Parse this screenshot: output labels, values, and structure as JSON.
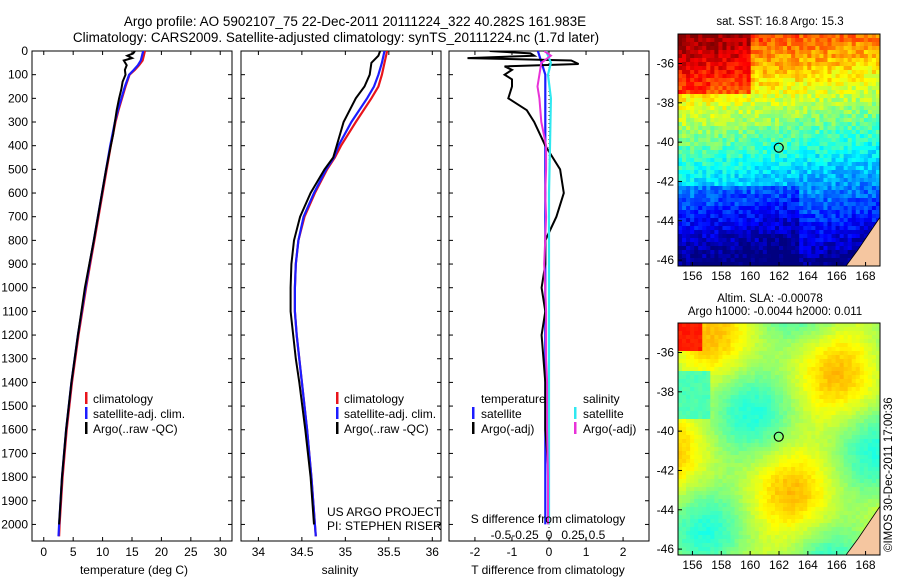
{
  "header": {
    "line1": "Argo profile: AO 5902107_75 22-Dec-2011 20111224_322 40.282S 161.983E",
    "line2": "Climatology: CARS2009. Satellite-adjusted climatology: synTS_20111224.nc (1.7d later)"
  },
  "colors": {
    "climatology": "#e8141b",
    "satellite": "#1c1cff",
    "argo": "#000000",
    "sat_sal": "#2fe8f0",
    "argo_sal": "#e832d8"
  },
  "chart_data": [
    {
      "type": "line",
      "id": "temperature",
      "xlabel": "temperature (deg C)",
      "ylabel": "",
      "xlim": [
        -2,
        32
      ],
      "ylim": [
        2070,
        0
      ],
      "xticks": [
        "0",
        "5",
        "10",
        "15",
        "20",
        "25",
        "30"
      ],
      "xtick_values": [
        0,
        5,
        10,
        15,
        20,
        25,
        30
      ],
      "yticks": [
        "0",
        "100",
        "200",
        "300",
        "400",
        "500",
        "600",
        "700",
        "800",
        "900",
        "1000",
        "1100",
        "1200",
        "1300",
        "1400",
        "1500",
        "1600",
        "1700",
        "1800",
        "1900",
        "2000"
      ],
      "ytick_values": [
        0,
        100,
        200,
        300,
        400,
        500,
        600,
        700,
        800,
        900,
        1000,
        1100,
        1200,
        1300,
        1400,
        1500,
        1600,
        1700,
        1800,
        1900,
        2000
      ],
      "legend": [
        "climatology",
        "satellite-adj. clim.",
        "Argo(..raw -QC)"
      ],
      "series": [
        {
          "name": "climatology",
          "depth": [
            0,
            20,
            40,
            60,
            80,
            100,
            150,
            200,
            250,
            300,
            400,
            500,
            600,
            700,
            800,
            900,
            1000,
            1200,
            1400,
            1600,
            1800,
            2000,
            2050
          ],
          "values": [
            17.2,
            17.0,
            16.8,
            16.2,
            15.5,
            14.6,
            13.9,
            13.3,
            12.7,
            12.2,
            11.4,
            10.7,
            10.0,
            9.3,
            8.6,
            7.9,
            7.2,
            5.9,
            4.8,
            3.9,
            3.2,
            2.7,
            2.6
          ]
        },
        {
          "name": "satellite",
          "depth": [
            0,
            20,
            40,
            60,
            80,
            100,
            150,
            200,
            250,
            300,
            400,
            500,
            600,
            700,
            800,
            900,
            1000,
            1200,
            1400,
            1600,
            1800,
            2000,
            2050
          ],
          "values": [
            16.9,
            16.7,
            16.5,
            16.0,
            15.3,
            14.5,
            13.8,
            13.2,
            12.6,
            12.1,
            11.3,
            10.6,
            9.9,
            9.2,
            8.5,
            7.8,
            7.1,
            5.8,
            4.7,
            3.8,
            3.1,
            2.6,
            2.5
          ]
        },
        {
          "name": "argo",
          "depth": [
            0,
            10,
            20,
            30,
            40,
            60,
            80,
            100,
            130,
            160,
            200,
            250,
            300,
            350,
            400,
            500,
            600,
            800,
            1000,
            1200,
            1400,
            1600,
            1800,
            2000
          ],
          "values": [
            15.5,
            15.2,
            14.2,
            15.0,
            13.6,
            14.1,
            13.8,
            13.9,
            13.4,
            13.2,
            12.8,
            12.4,
            12.1,
            11.8,
            11.4,
            10.6,
            9.9,
            8.5,
            7.0,
            5.8,
            4.7,
            3.8,
            3.1,
            2.6
          ]
        }
      ]
    },
    {
      "type": "line",
      "id": "salinity",
      "xlabel": "salinity",
      "xlim": [
        33.8,
        36.1
      ],
      "xticks": [
        "34",
        "34.5",
        "35",
        "35.5",
        "36"
      ],
      "xtick_values": [
        34,
        34.5,
        35,
        35.5,
        36
      ],
      "legend": [
        "climatology",
        "satellite-adj. clim.",
        "Argo(..raw -QC)"
      ],
      "annotation_lines": [
        "US ARGO PROJECT",
        "PI: STEPHEN RISER"
      ],
      "series": [
        {
          "name": "climatology",
          "depth": [
            0,
            50,
            100,
            150,
            200,
            300,
            400,
            450,
            500,
            600,
            700,
            800,
            900,
            1000,
            1100,
            1200,
            1400,
            1600,
            1800,
            2000,
            2050
          ],
          "values": [
            35.48,
            35.45,
            35.42,
            35.38,
            35.3,
            35.12,
            34.95,
            34.88,
            34.79,
            34.65,
            34.53,
            34.46,
            34.43,
            34.42,
            34.42,
            34.44,
            34.5,
            34.56,
            34.61,
            34.65,
            34.66
          ]
        },
        {
          "name": "satellite",
          "depth": [
            0,
            50,
            100,
            150,
            200,
            300,
            400,
            450,
            500,
            600,
            700,
            800,
            900,
            1000,
            1100,
            1200,
            1400,
            1600,
            1800,
            2000,
            2050
          ],
          "values": [
            35.45,
            35.42,
            35.38,
            35.33,
            35.25,
            35.07,
            34.92,
            34.87,
            34.78,
            34.64,
            34.52,
            34.46,
            34.43,
            34.42,
            34.42,
            34.44,
            34.5,
            34.56,
            34.61,
            34.65,
            34.66
          ]
        },
        {
          "name": "argo",
          "depth": [
            0,
            20,
            50,
            100,
            150,
            200,
            300,
            400,
            450,
            500,
            600,
            700,
            800,
            900,
            1000,
            1100,
            1200,
            1300,
            1400,
            1600,
            1800,
            2000
          ],
          "values": [
            35.4,
            35.38,
            35.3,
            35.28,
            35.22,
            35.12,
            34.98,
            34.9,
            34.86,
            34.76,
            34.6,
            34.48,
            34.41,
            34.38,
            34.37,
            34.37,
            34.4,
            34.43,
            34.47,
            34.54,
            34.6,
            34.64
          ]
        }
      ]
    },
    {
      "type": "line",
      "id": "difference",
      "xlabel": "T difference from climatology",
      "xlim": [
        -2.7,
        2.7
      ],
      "xticks": [
        "-2",
        "-1",
        "0",
        "1",
        "2"
      ],
      "xtick_values": [
        -2,
        -1,
        0,
        1,
        2
      ],
      "top_axis_label": "S difference from climatology",
      "top_ticks": [
        "-0.5",
        "-0.25",
        "0",
        "0.25",
        "0.5"
      ],
      "top_tick_values": [
        -0.5,
        -0.25,
        0,
        0.25,
        0.5
      ],
      "legend_left_title": "temperature",
      "legend_right_title": "salinity",
      "legend": [
        "satellite",
        "Argo(-adj)",
        "satellite",
        "Argo(-adj)"
      ],
      "series": [
        {
          "name": "satellite-T",
          "depth": [
            0,
            50,
            100,
            200,
            400,
            600,
            800,
            1000,
            1200,
            1400,
            1600,
            1800,
            2000
          ],
          "values": [
            -0.3,
            -0.2,
            -0.1,
            -0.1,
            -0.1,
            -0.1,
            -0.1,
            -0.1,
            -0.1,
            -0.1,
            -0.1,
            -0.1,
            -0.1
          ]
        },
        {
          "name": "argo-T",
          "depth": [
            0,
            10,
            20,
            30,
            40,
            55,
            65,
            80,
            100,
            120,
            150,
            200,
            250,
            300,
            400,
            500,
            600,
            700,
            800,
            900,
            1000,
            1100,
            1200,
            1400,
            1600,
            1800,
            2000
          ],
          "values": [
            -1.6,
            -0.5,
            -0.4,
            -2.2,
            0.6,
            0.8,
            -1.2,
            -1.0,
            -1.2,
            -1.0,
            -1.0,
            -1.1,
            -0.6,
            -0.4,
            -0.1,
            0.3,
            0.4,
            0.2,
            -0.1,
            -0.1,
            -0.2,
            -0.1,
            -0.2,
            -0.1,
            -0.1,
            0.0,
            0.0
          ]
        },
        {
          "name": "satellite-S",
          "depth": [
            0,
            50,
            100,
            200,
            400,
            600,
            800,
            1000,
            1200,
            1400,
            1600,
            1800,
            2000
          ],
          "values": [
            -0.03,
            0.02,
            -0.01,
            0.02,
            0.01,
            0.0,
            0.0,
            0.0,
            0.0,
            0.0,
            0.0,
            0.0,
            0.0
          ]
        },
        {
          "name": "argo-S",
          "depth": [
            0,
            20,
            50,
            100,
            150,
            200,
            300,
            400,
            500,
            600,
            700,
            800,
            900,
            1000,
            1100,
            1200,
            1300,
            1400,
            1600,
            1800,
            2000
          ],
          "values": [
            -0.05,
            0.02,
            -0.08,
            -0.1,
            -0.12,
            -0.1,
            -0.08,
            -0.03,
            -0.03,
            -0.04,
            -0.03,
            -0.04,
            -0.05,
            -0.04,
            -0.03,
            -0.03,
            -0.03,
            -0.02,
            -0.02,
            -0.01,
            -0.01
          ]
        }
      ]
    },
    {
      "type": "heatmap",
      "id": "sst_map",
      "title": "sat. SST: 16.8 Argo: 15.3",
      "xticks": [
        "156",
        "158",
        "160",
        "162",
        "164",
        "166",
        "168"
      ],
      "xtick_values": [
        156,
        158,
        160,
        162,
        164,
        166,
        168
      ],
      "yticks": [
        "-36",
        "-38",
        "-40",
        "-42",
        "-44",
        "-46"
      ],
      "ytick_values": [
        -36,
        -38,
        -40,
        -42,
        -44,
        -46
      ],
      "xlim": [
        155,
        169
      ],
      "ylim": [
        -46.3,
        -34.5
      ],
      "marker": [
        161.983,
        -40.282
      ]
    },
    {
      "type": "heatmap",
      "id": "sla_map",
      "title": "Altim. SLA: -0.00078",
      "subtitle": "Argo h1000: -0.0044 h2000: 0.011",
      "xticks": [
        "156",
        "158",
        "160",
        "162",
        "164",
        "166",
        "168"
      ],
      "xtick_values": [
        156,
        158,
        160,
        162,
        164,
        166,
        168
      ],
      "yticks": [
        "-36",
        "-38",
        "-40",
        "-42",
        "-44",
        "-46"
      ],
      "ytick_values": [
        -36,
        -38,
        -40,
        -42,
        -44,
        -46
      ],
      "xlim": [
        155,
        169
      ],
      "ylim": [
        -46.3,
        -34.5
      ],
      "marker": [
        161.983,
        -40.282
      ]
    }
  ],
  "footer": {
    "credit": "©IMOS 30-Dec-2011 17:00:36"
  }
}
